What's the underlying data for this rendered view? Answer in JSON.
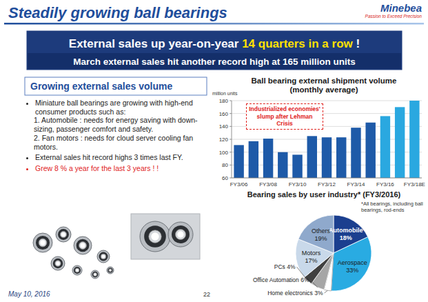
{
  "header": {
    "title": "Steadily growing ball bearings",
    "logo": "Minebea",
    "tagline": "Passion to Exceed Precision"
  },
  "banner": {
    "text_before": "External sales up year-on-year ",
    "highlight": "14 quarters in a row",
    "text_after": " !",
    "line2": "March external sales hit another record high at 165 million units"
  },
  "text_box": {
    "title": "Growing external sales volume",
    "bullets": [
      {
        "text": "Miniature ball bearings are growing with high-end consumer products such as:",
        "items": [
          "1. Automobile : needs for energy saving with down-sizing, passenger comfort and safety.",
          "2. Fan motors : needs for cloud server cooling fan motors."
        ]
      },
      {
        "text": "External sales hit record highs 3 times last FY."
      },
      {
        "text": "Grew 8 % a year for the last 3 years ! !"
      }
    ]
  },
  "chart_data": [
    {
      "type": "bar",
      "title": "Ball bearing external shipment volume",
      "subtitle": "(monthly average)",
      "y_label": "million units",
      "categories": [
        "FY3/06",
        null,
        "FY3/08",
        null,
        "FY3/10",
        null,
        "FY3/12",
        null,
        "FY3/14",
        null,
        "FY3/16",
        null,
        "FY3/18E"
      ],
      "values": [
        111,
        117,
        121,
        100,
        96,
        125,
        123,
        123,
        138,
        146,
        156,
        170,
        180
      ],
      "colors": [
        "#1e5aa8",
        "#1e5aa8",
        "#1e5aa8",
        "#1e5aa8",
        "#1e5aa8",
        "#1e5aa8",
        "#1e5aa8",
        "#1e5aa8",
        "#1e5aa8",
        "#1e5aa8",
        "#2aa8e0",
        "#2aa8e0",
        "#2aa8e0"
      ],
      "ylim": [
        60,
        180
      ],
      "yticks": [
        60,
        80,
        100,
        120,
        140,
        160,
        180
      ],
      "grid": true,
      "annotation": "Industrialized economies' slump after Lehman Crisis"
    },
    {
      "type": "pie",
      "title": "Bearing sales by user industry* (FY3/2016)",
      "note": "*All bearings, including ball bearings, rod-ends",
      "categories": [
        "Automobile",
        "Aerospace",
        "Home electronics",
        "Office Automation",
        "PCs",
        "Motors",
        "Others"
      ],
      "values": [
        18,
        33,
        3,
        6,
        4,
        17,
        19
      ],
      "value_labels": [
        "18%",
        "33%",
        "3%",
        "6%",
        "4%",
        "17%",
        "19%"
      ],
      "colors": [
        "#1b3f8f",
        "#29abe2",
        "#ffffff",
        "#a6a6a6",
        "#404040",
        "#c9d9ea",
        "#8fa9cc"
      ],
      "data_labels": true
    }
  ],
  "footer": {
    "date": "May 10, 2016",
    "page": "22"
  }
}
